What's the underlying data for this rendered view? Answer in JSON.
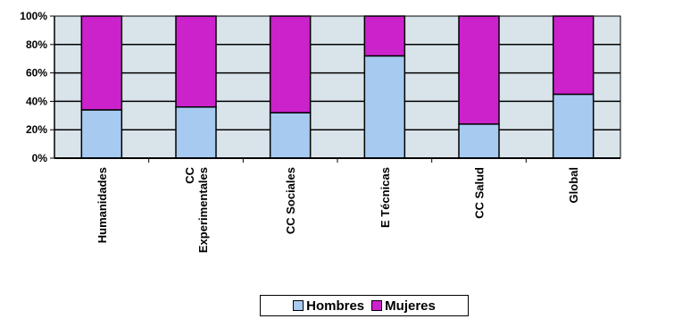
{
  "chart_data": {
    "type": "bar",
    "stacked": true,
    "categories": [
      "Humanidades",
      [
        "CC",
        "Experimentales"
      ],
      "CC Sociales",
      "E Técnicas",
      "CC Salud",
      "Global"
    ],
    "series": [
      {
        "name": "Hombres",
        "values": [
          34,
          36,
          32,
          72,
          24,
          45
        ],
        "color": "#a6caf0"
      },
      {
        "name": "Mujeres",
        "values": [
          66,
          64,
          68,
          28,
          76,
          55
        ],
        "color": "#cc22cc"
      }
    ],
    "ylim": [
      0,
      100
    ],
    "yticks": [
      "0%",
      "20%",
      "40%",
      "60%",
      "80%",
      "100%"
    ],
    "plot_background": "#d9e4ea",
    "grid": true,
    "legend_position": "bottom"
  }
}
